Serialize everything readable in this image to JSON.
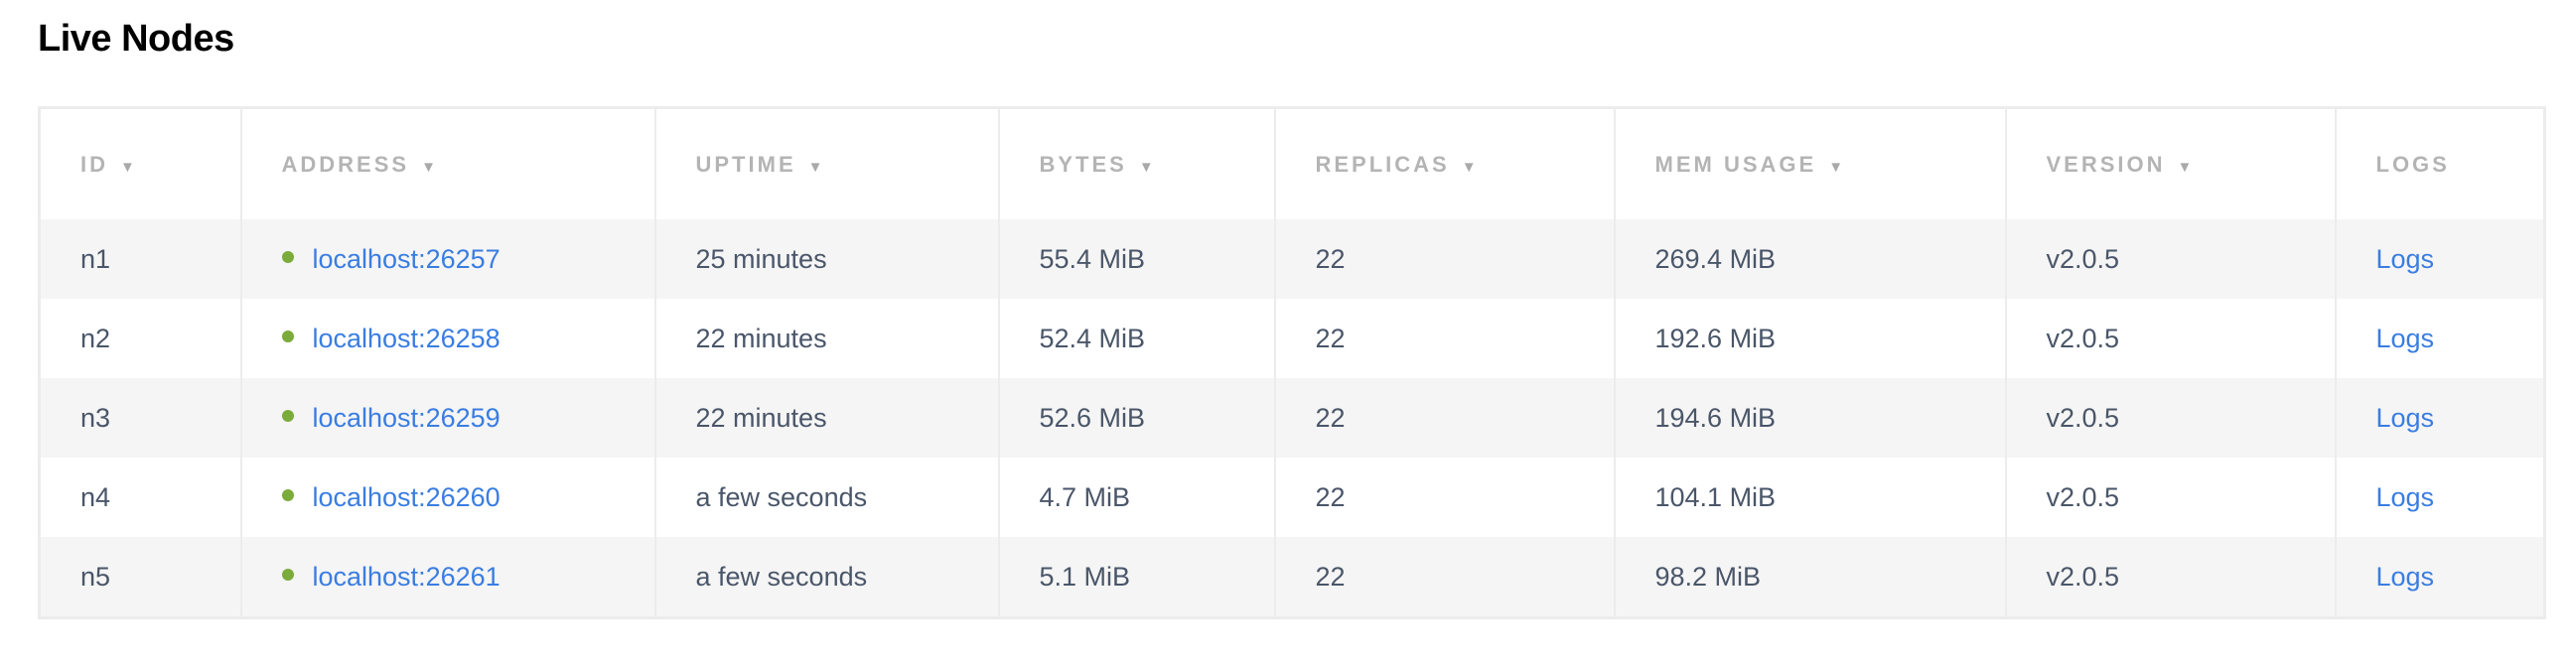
{
  "title": "Live Nodes",
  "colors": {
    "link": "#3a7de1",
    "status_live": "#7bab3a",
    "stripe": "#f5f5f5"
  },
  "columns": [
    {
      "label": "ID",
      "sortable": true
    },
    {
      "label": "ADDRESS",
      "sortable": true
    },
    {
      "label": "UPTIME",
      "sortable": true
    },
    {
      "label": "BYTES",
      "sortable": true
    },
    {
      "label": "REPLICAS",
      "sortable": true
    },
    {
      "label": "MEM USAGE",
      "sortable": true
    },
    {
      "label": "VERSION",
      "sortable": true
    },
    {
      "label": "LOGS",
      "sortable": false
    }
  ],
  "sort_icon": "triangle-down",
  "rows": [
    {
      "id": "n1",
      "address": "localhost:26257",
      "uptime": "25 minutes",
      "bytes": "55.4 MiB",
      "replicas": "22",
      "mem": "269.4 MiB",
      "version": "v2.0.5",
      "logs": "Logs",
      "status": "live"
    },
    {
      "id": "n2",
      "address": "localhost:26258",
      "uptime": "22 minutes",
      "bytes": "52.4 MiB",
      "replicas": "22",
      "mem": "192.6 MiB",
      "version": "v2.0.5",
      "logs": "Logs",
      "status": "live"
    },
    {
      "id": "n3",
      "address": "localhost:26259",
      "uptime": "22 minutes",
      "bytes": "52.6 MiB",
      "replicas": "22",
      "mem": "194.6 MiB",
      "version": "v2.0.5",
      "logs": "Logs",
      "status": "live"
    },
    {
      "id": "n4",
      "address": "localhost:26260",
      "uptime": "a few seconds",
      "bytes": "4.7 MiB",
      "replicas": "22",
      "mem": "104.1 MiB",
      "version": "v2.0.5",
      "logs": "Logs",
      "status": "live"
    },
    {
      "id": "n5",
      "address": "localhost:26261",
      "uptime": "a few seconds",
      "bytes": "5.1 MiB",
      "replicas": "22",
      "mem": "98.2 MiB",
      "version": "v2.0.5",
      "logs": "Logs",
      "status": "live"
    }
  ]
}
